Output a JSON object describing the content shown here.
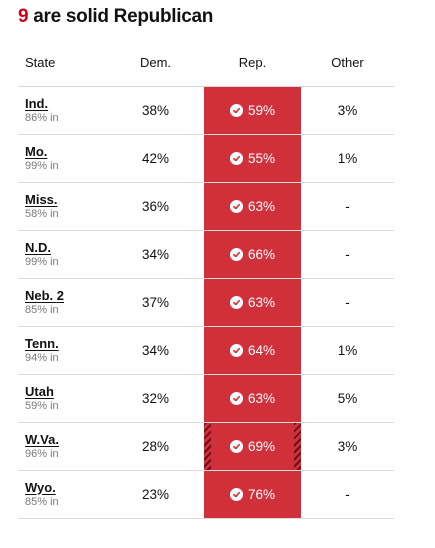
{
  "heading": {
    "count": "9",
    "text": " are solid Republican"
  },
  "table": {
    "headers": {
      "state": "State",
      "dem": "Dem.",
      "rep": "Rep.",
      "other": "Other"
    },
    "rows": [
      {
        "state": "Ind.",
        "reporting": "86% in",
        "dem": "38%",
        "rep": "59%",
        "other": "3%",
        "winner_icon": "check-circle-icon",
        "hatched": false
      },
      {
        "state": "Mo.",
        "reporting": "99% in",
        "dem": "42%",
        "rep": "55%",
        "other": "1%",
        "winner_icon": "check-circle-icon",
        "hatched": false
      },
      {
        "state": "Miss.",
        "reporting": "58% in",
        "dem": "36%",
        "rep": "63%",
        "other": "-",
        "winner_icon": "check-circle-icon",
        "hatched": false
      },
      {
        "state": "N.D.",
        "reporting": "99% in",
        "dem": "34%",
        "rep": "66%",
        "other": "-",
        "winner_icon": "check-circle-icon",
        "hatched": false
      },
      {
        "state": "Neb. 2",
        "reporting": "85% in",
        "dem": "37%",
        "rep": "63%",
        "other": "-",
        "winner_icon": "check-circle-icon",
        "hatched": false
      },
      {
        "state": "Tenn.",
        "reporting": "94% in",
        "dem": "34%",
        "rep": "64%",
        "other": "1%",
        "winner_icon": "check-circle-icon",
        "hatched": false
      },
      {
        "state": "Utah",
        "reporting": "59% in",
        "dem": "32%",
        "rep": "63%",
        "other": "5%",
        "winner_icon": "check-circle-icon",
        "hatched": false
      },
      {
        "state": "W.Va.",
        "reporting": "96% in",
        "dem": "28%",
        "rep": "69%",
        "other": "3%",
        "winner_icon": "check-circle-icon",
        "hatched": true
      },
      {
        "state": "Wyo.",
        "reporting": "85% in",
        "dem": "23%",
        "rep": "76%",
        "other": "-",
        "winner_icon": "check-circle-icon",
        "hatched": false
      }
    ]
  },
  "colors": {
    "republican": "#d0303a",
    "heading_accent": "#d0021b",
    "hatch": "#6e0f16"
  }
}
